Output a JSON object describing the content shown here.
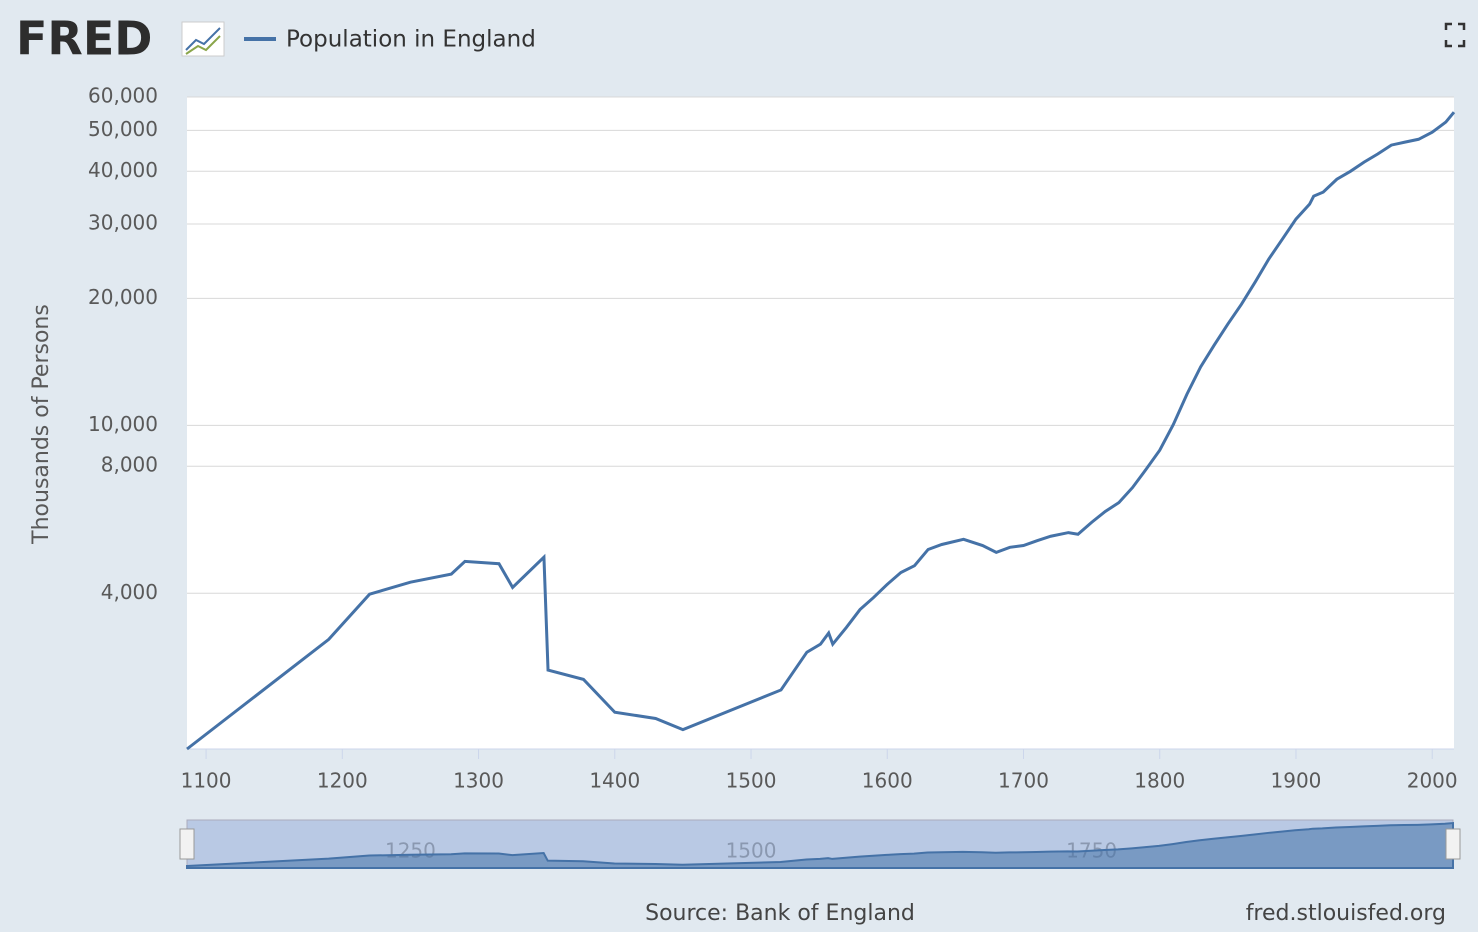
{
  "header": {
    "logo": "FRED"
  },
  "chart_data": {
    "type": "line",
    "log_y": true,
    "grid": true,
    "y_axis_label": "Thousands of Persons",
    "source": "Source: Bank of England",
    "site": "fred.stlouisfed.org",
    "series": [
      {
        "name": "Population in England",
        "color": "#4572a7",
        "x": [
          1086,
          1190,
          1220,
          1250,
          1280,
          1290,
          1315,
          1325,
          1348,
          1351,
          1377,
          1400,
          1430,
          1450,
          1522,
          1541,
          1551,
          1557,
          1560,
          1570,
          1580,
          1590,
          1600,
          1610,
          1620,
          1630,
          1640,
          1656,
          1670,
          1680,
          1690,
          1700,
          1710,
          1720,
          1733,
          1740,
          1750,
          1760,
          1770,
          1780,
          1790,
          1800,
          1810,
          1820,
          1830,
          1840,
          1850,
          1860,
          1870,
          1880,
          1890,
          1900,
          1910,
          1913,
          1920,
          1930,
          1940,
          1950,
          1960,
          1970,
          1980,
          1990,
          2000,
          2010,
          2016
        ],
        "values": [
          1710,
          3110,
          3980,
          4250,
          4440,
          4760,
          4700,
          4130,
          4870,
          2630,
          2500,
          2090,
          2020,
          1900,
          2360,
          2900,
          3030,
          3220,
          3030,
          3320,
          3660,
          3910,
          4200,
          4480,
          4650,
          5080,
          5220,
          5370,
          5190,
          5000,
          5140,
          5190,
          5330,
          5460,
          5570,
          5520,
          5890,
          6250,
          6560,
          7120,
          7870,
          8730,
          10050,
          11860,
          13750,
          15500,
          17380,
          19370,
          21840,
          24770,
          27620,
          30820,
          33430,
          34930,
          35700,
          38300,
          40000,
          42050,
          43960,
          46150,
          46900,
          47640,
          49500,
          52330,
          55230
        ]
      }
    ],
    "xlim": [
      1086,
      2016
    ],
    "ylim": [
      1710,
      60000
    ],
    "xticks": [
      1100,
      1200,
      1300,
      1400,
      1500,
      1600,
      1700,
      1800,
      1900,
      2000
    ],
    "yticks": [
      {
        "value": 4000,
        "label": "4,000"
      },
      {
        "value": 8000,
        "label": "8,000"
      },
      {
        "value": 10000,
        "label": "10,000"
      },
      {
        "value": 20000,
        "label": "20,000"
      },
      {
        "value": 30000,
        "label": "30,000"
      },
      {
        "value": 40000,
        "label": "40,000"
      },
      {
        "value": 50000,
        "label": "50,000"
      },
      {
        "value": 60000,
        "label": "60,000"
      }
    ],
    "navigator_ticks": [
      1250,
      1500,
      1750
    ]
  }
}
